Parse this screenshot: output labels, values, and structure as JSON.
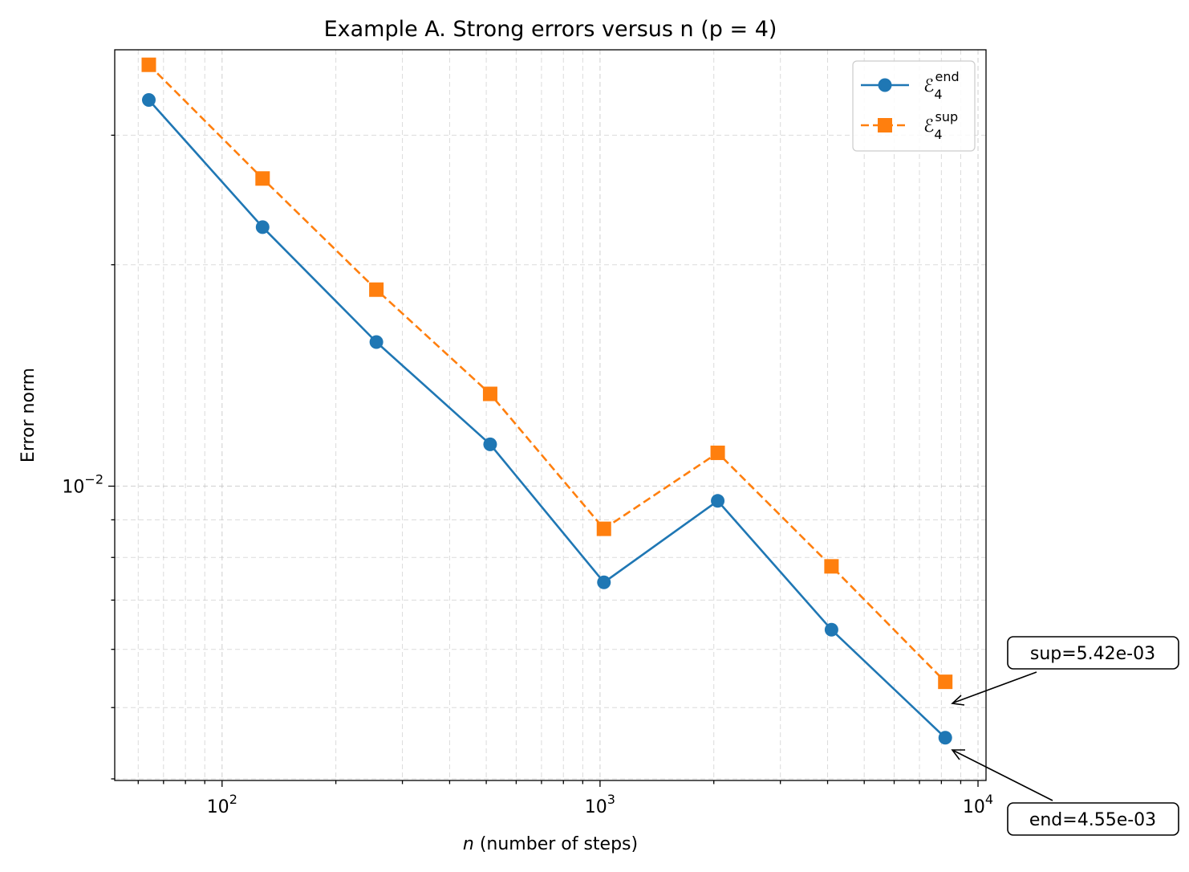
{
  "chart_data": {
    "type": "line",
    "title": "Example A. Strong errors versus n (p = 4)",
    "xlabel": "n (number of steps)",
    "xlabel_italic_part": "n",
    "xlabel_rest": " (number of steps)",
    "ylabel": "Error norm",
    "xscale": "log",
    "yscale": "log",
    "xlim": [
      52,
      10500
    ],
    "ylim": [
      0.00398,
      0.0392
    ],
    "grid": "major and minor, dashed",
    "x_ticks": [
      {
        "value": 100,
        "base": "10",
        "exp": "2"
      },
      {
        "value": 1000,
        "base": "10",
        "exp": "3"
      },
      {
        "value": 10000,
        "base": "10",
        "exp": "4"
      }
    ],
    "y_ticks": [
      {
        "value": 0.01,
        "base": "10",
        "exp": "−2"
      }
    ],
    "x": [
      64,
      128,
      256,
      512,
      1024,
      2048,
      4096,
      8192
    ],
    "series": [
      {
        "name": "ℰ4 end",
        "legend_symbol": "ℰ",
        "legend_sub": "4",
        "legend_sup": "end",
        "values": [
          0.0335,
          0.0225,
          0.0157,
          0.0114,
          0.0074,
          0.00955,
          0.00638,
          0.00455
        ],
        "color": "#1f77b4",
        "marker": "circle",
        "linestyle": "solid"
      },
      {
        "name": "ℰ4 sup",
        "legend_symbol": "ℰ",
        "legend_sub": "4",
        "legend_sup": "sup",
        "values": [
          0.0374,
          0.0262,
          0.0185,
          0.01335,
          0.00875,
          0.0111,
          0.00778,
          0.00542
        ],
        "color": "#ff7f0e",
        "marker": "square",
        "linestyle": "dashed"
      }
    ],
    "legend_position": "top-right",
    "annotations": [
      {
        "text": "sup=5.42e-03",
        "series": 1,
        "point_index": 7
      },
      {
        "text": "end=4.55e-03",
        "series": 0,
        "point_index": 7
      }
    ]
  }
}
